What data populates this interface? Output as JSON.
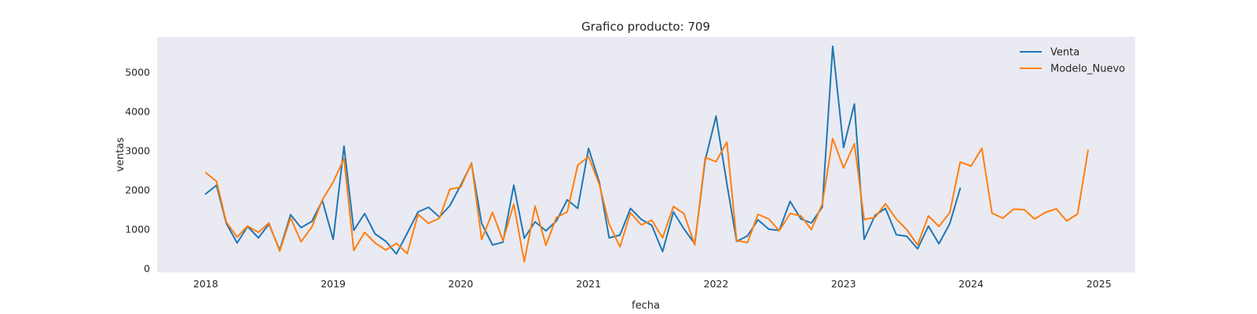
{
  "chart_data": {
    "type": "line",
    "title": "Grafico producto: 709",
    "xlabel": "fecha",
    "ylabel": "ventas",
    "xlim": [
      "2017-08-15",
      "2025-04-15"
    ],
    "ylim": [
      -100,
      5900
    ],
    "x_ticks": [
      {
        "value": "2018-01-01",
        "label": "2018"
      },
      {
        "value": "2019-01-01",
        "label": "2019"
      },
      {
        "value": "2020-01-01",
        "label": "2020"
      },
      {
        "value": "2021-01-01",
        "label": "2021"
      },
      {
        "value": "2022-01-01",
        "label": "2022"
      },
      {
        "value": "2023-01-01",
        "label": "2023"
      },
      {
        "value": "2024-01-01",
        "label": "2024"
      },
      {
        "value": "2025-01-01",
        "label": "2025"
      }
    ],
    "y_ticks": [
      0,
      1000,
      2000,
      3000,
      4000,
      5000
    ],
    "grid": false,
    "legend": "top-right",
    "background": "#eaeaf2",
    "series": [
      {
        "name": "Venta",
        "color": "#1f77b4",
        "x": [
          "2018-01-01",
          "2018-02-01",
          "2018-03-01",
          "2018-04-01",
          "2018-05-01",
          "2018-06-01",
          "2018-07-01",
          "2018-08-01",
          "2018-09-01",
          "2018-10-01",
          "2018-11-01",
          "2018-12-01",
          "2019-01-01",
          "2019-02-01",
          "2019-03-01",
          "2019-04-01",
          "2019-05-01",
          "2019-06-01",
          "2019-07-01",
          "2019-08-01",
          "2019-09-01",
          "2019-10-01",
          "2019-11-01",
          "2019-12-01",
          "2020-01-01",
          "2020-02-01",
          "2020-03-01",
          "2020-04-01",
          "2020-05-01",
          "2020-06-01",
          "2020-07-01",
          "2020-08-01",
          "2020-09-01",
          "2020-10-01",
          "2020-11-01",
          "2020-12-01",
          "2021-01-01",
          "2021-02-01",
          "2021-03-01",
          "2021-04-01",
          "2021-05-01",
          "2021-06-01",
          "2021-07-01",
          "2021-08-01",
          "2021-09-01",
          "2021-10-01",
          "2021-11-01",
          "2021-12-01",
          "2022-01-01",
          "2022-02-01",
          "2022-03-01",
          "2022-04-01",
          "2022-05-01",
          "2022-06-01",
          "2022-07-01",
          "2022-08-01",
          "2022-09-01",
          "2022-10-01",
          "2022-11-01",
          "2022-12-01",
          "2023-01-01",
          "2023-02-01",
          "2023-03-01",
          "2023-04-01",
          "2023-05-01",
          "2023-06-01",
          "2023-07-01",
          "2023-08-01",
          "2023-09-01",
          "2023-10-01",
          "2023-11-01",
          "2023-12-01"
        ],
        "values": [
          1900,
          2120,
          1150,
          650,
          1070,
          780,
          1130,
          470,
          1370,
          1040,
          1200,
          1730,
          740,
          3120,
          970,
          1400,
          880,
          690,
          370,
          900,
          1440,
          1560,
          1310,
          1600,
          2120,
          2670,
          1150,
          600,
          670,
          2120,
          770,
          1190,
          960,
          1210,
          1750,
          1530,
          3060,
          2200,
          780,
          850,
          1530,
          1250,
          1100,
          430,
          1440,
          1010,
          630,
          2760,
          3880,
          2160,
          690,
          830,
          1240,
          1000,
          970,
          1710,
          1260,
          1160,
          1560,
          5660,
          3080,
          4190,
          740,
          1350,
          1530,
          860,
          820,
          500,
          1080,
          630,
          1140,
          2040
        ]
      },
      {
        "name": "Modelo_Nuevo",
        "color": "#ff7f0e",
        "x": [
          "2018-01-01",
          "2018-02-01",
          "2018-03-01",
          "2018-04-01",
          "2018-05-01",
          "2018-06-01",
          "2018-07-01",
          "2018-08-01",
          "2018-09-01",
          "2018-10-01",
          "2018-11-01",
          "2018-12-01",
          "2019-01-01",
          "2019-02-01",
          "2019-03-01",
          "2019-04-01",
          "2019-05-01",
          "2019-06-01",
          "2019-07-01",
          "2019-08-01",
          "2019-09-01",
          "2019-10-01",
          "2019-11-01",
          "2019-12-01",
          "2020-01-01",
          "2020-02-01",
          "2020-03-01",
          "2020-04-01",
          "2020-05-01",
          "2020-06-01",
          "2020-07-01",
          "2020-08-01",
          "2020-09-01",
          "2020-10-01",
          "2020-11-01",
          "2020-12-01",
          "2021-01-01",
          "2021-02-01",
          "2021-03-01",
          "2021-04-01",
          "2021-05-01",
          "2021-06-01",
          "2021-07-01",
          "2021-08-01",
          "2021-09-01",
          "2021-10-01",
          "2021-11-01",
          "2021-12-01",
          "2022-01-01",
          "2022-02-01",
          "2022-03-01",
          "2022-04-01",
          "2022-05-01",
          "2022-06-01",
          "2022-07-01",
          "2022-08-01",
          "2022-09-01",
          "2022-10-01",
          "2022-11-01",
          "2022-12-01",
          "2023-01-01",
          "2023-02-01",
          "2023-03-01",
          "2023-04-01",
          "2023-05-01",
          "2023-06-01",
          "2023-07-01",
          "2023-08-01",
          "2023-09-01",
          "2023-10-01",
          "2023-11-01",
          "2023-12-01",
          "2024-01-01",
          "2024-02-01",
          "2024-03-01",
          "2024-04-01",
          "2024-05-01",
          "2024-06-01",
          "2024-07-01",
          "2024-08-01",
          "2024-09-01",
          "2024-10-01",
          "2024-11-01",
          "2024-12-01"
        ],
        "values": [
          2440,
          2220,
          1180,
          800,
          1080,
          920,
          1160,
          440,
          1290,
          680,
          1060,
          1750,
          2200,
          2800,
          460,
          920,
          650,
          470,
          640,
          380,
          1380,
          1150,
          1280,
          2020,
          2070,
          2690,
          740,
          1430,
          710,
          1640,
          170,
          1590,
          590,
          1300,
          1440,
          2630,
          2850,
          2140,
          1130,
          550,
          1420,
          1110,
          1230,
          780,
          1580,
          1400,
          600,
          2830,
          2720,
          3220,
          710,
          660,
          1380,
          1260,
          960,
          1400,
          1340,
          990,
          1640,
          3310,
          2560,
          3180,
          1250,
          1300,
          1650,
          1260,
          990,
          600,
          1340,
          1070,
          1420,
          2710,
          2610,
          3060,
          1410,
          1280,
          1510,
          1500,
          1260,
          1430,
          1520,
          1210,
          1390,
          3010
        ]
      }
    ]
  }
}
